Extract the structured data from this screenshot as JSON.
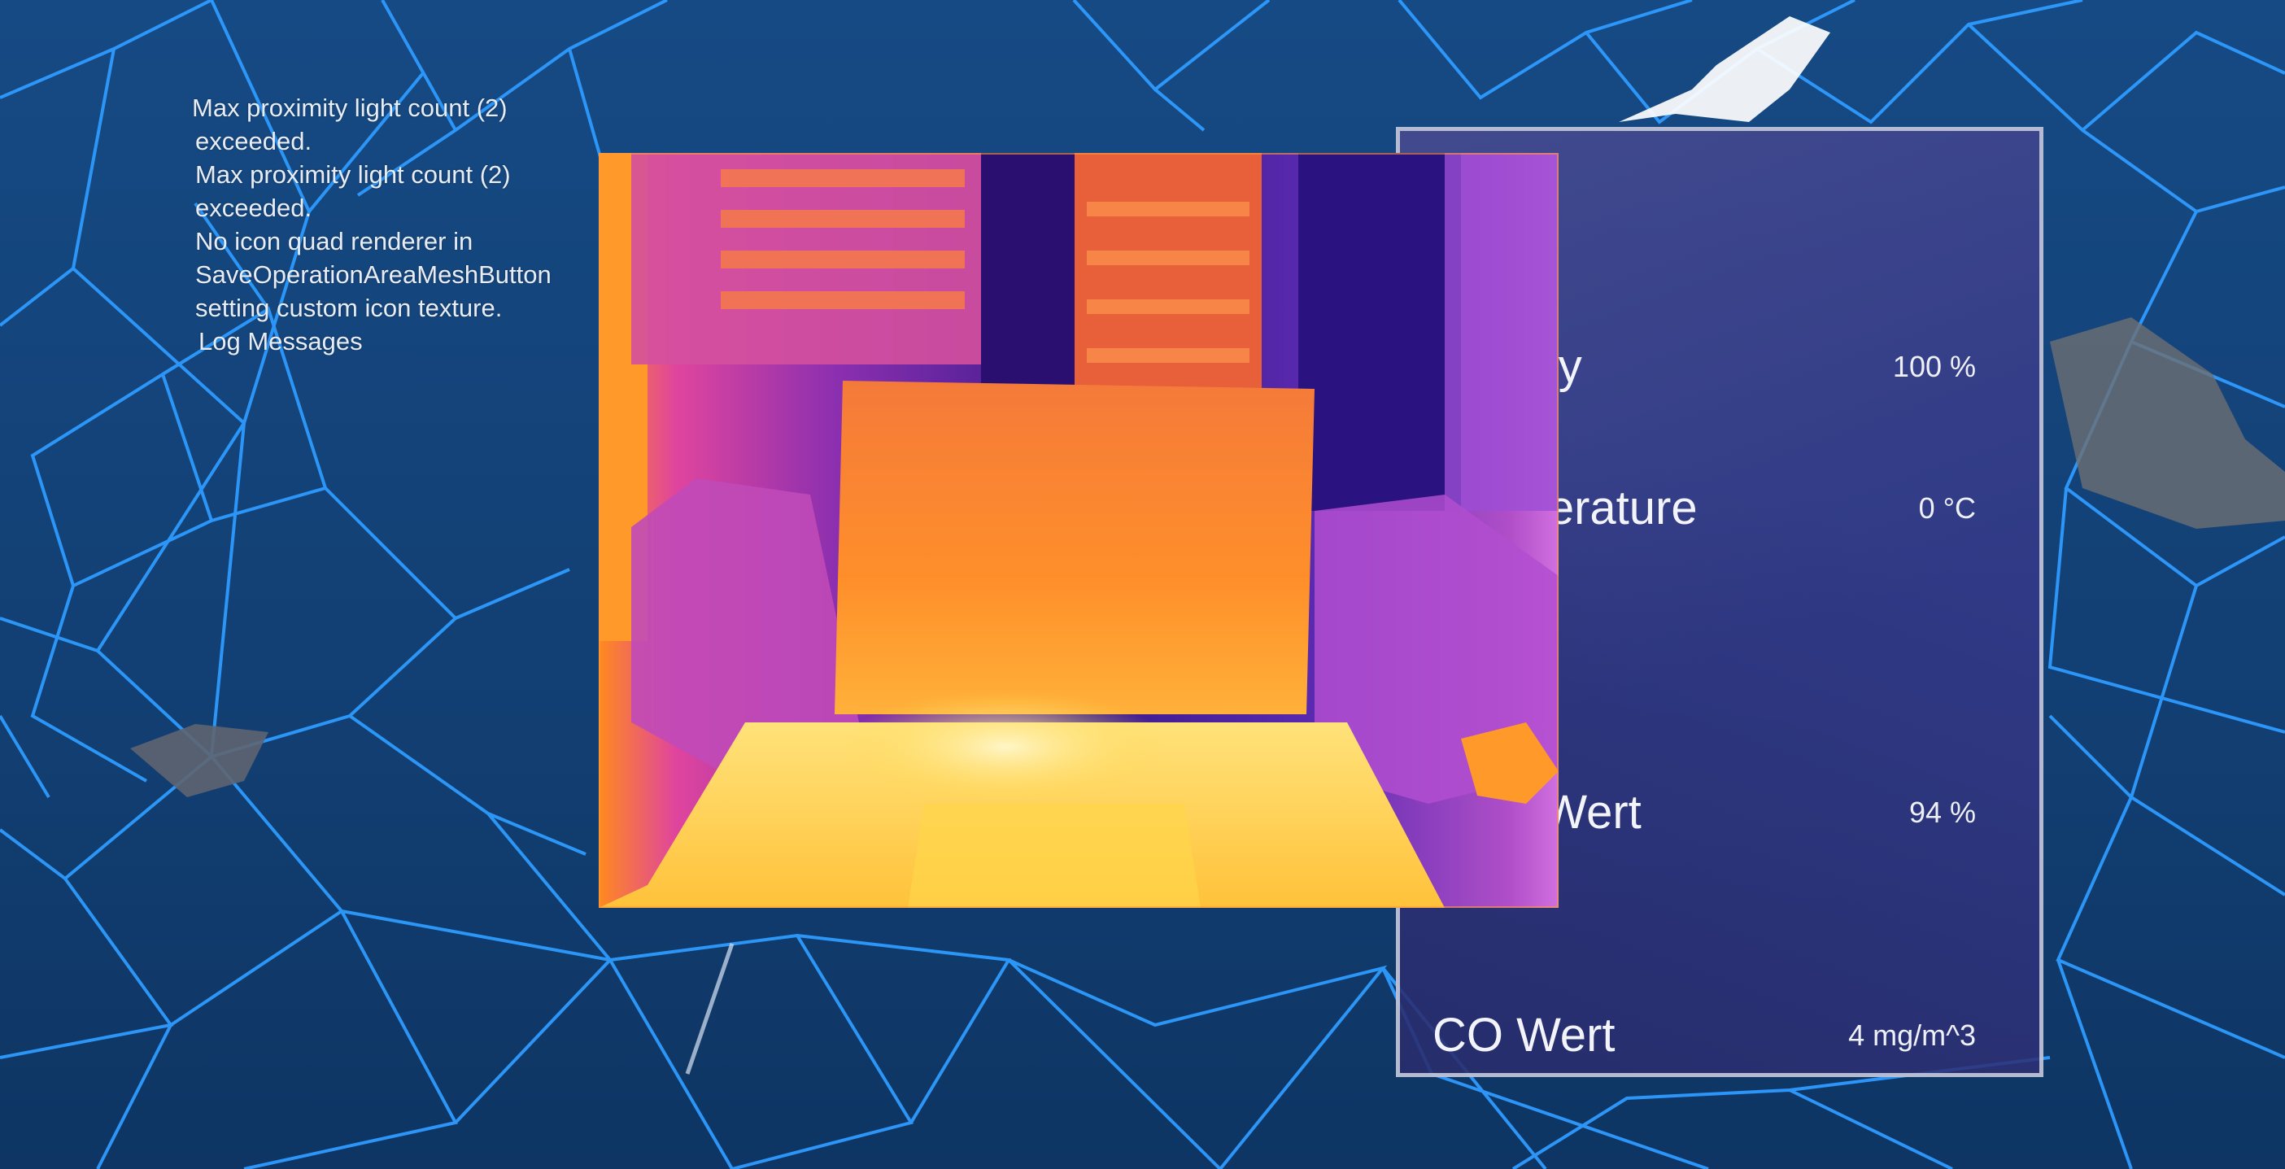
{
  "log": {
    "lines": [
      "Max proximity light count (2)",
      "exceeded.",
      "Max proximity light count (2)",
      "exceeded.",
      "No icon quad renderer in",
      "SaveOperationAreaMeshButton",
      "setting custom icon texture.",
      "Log Messages"
    ]
  },
  "panel": {
    "rows": [
      {
        "label": "Battery",
        "value": "100 %"
      },
      {
        "label": "Temperature",
        "value": "0 °C"
      },
      {
        "label": "CO2 Wert",
        "value": "94 %"
      },
      {
        "label": "CO Wert",
        "value": "4 mg/m^3"
      }
    ]
  },
  "colors": {
    "background": "#123f73",
    "mesh_line": "#2e9bff",
    "panel_bg": "#34388c",
    "thermal_hot": "#ffe066",
    "thermal_warm": "#ff8a1e",
    "thermal_cool": "#8a2fb0"
  }
}
